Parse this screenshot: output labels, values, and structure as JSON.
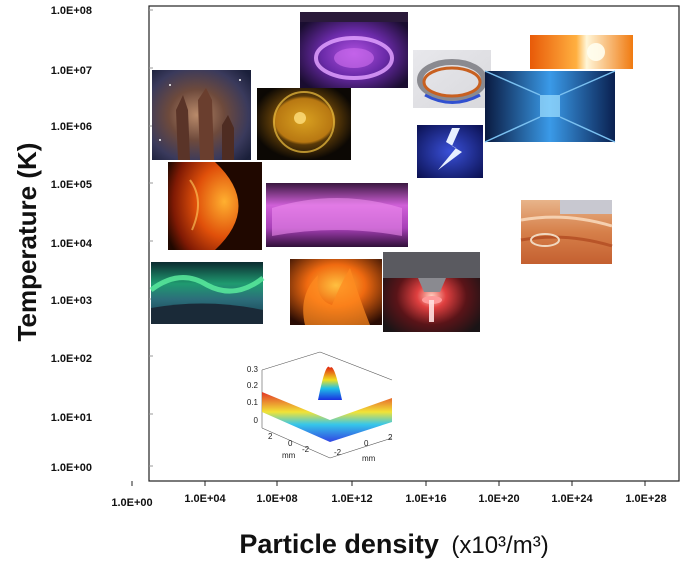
{
  "chart_data": {
    "type": "scatter",
    "title": "",
    "xlabel": "Particle density",
    "xlabel_unit": "(x10³/m³)",
    "ylabel": "Temperature (K)",
    "x_scale": "log",
    "y_scale": "log",
    "x_ticks": [
      "1.0E+00",
      "1.0E+04",
      "1.0E+08",
      "1.0E+12",
      "1.0E+16",
      "1.0E+20",
      "1.0E+24",
      "1.0E+28"
    ],
    "y_ticks": [
      "1.0E+08",
      "1.0E+07",
      "1.0E+06",
      "1.0E+05",
      "1.0E+04",
      "1.0E+03",
      "1.0E+02",
      "1.0E+01",
      "1.0E+00"
    ],
    "xlim": [
      "1.0E+00",
      "1.0E+28"
    ],
    "ylim": [
      "1.0E+00",
      "1.0E+08"
    ],
    "grid": false,
    "points": [
      {
        "image": "pillars-nebula",
        "x": "1.0E+02",
        "y": "1.0E+06"
      },
      {
        "image": "solar-corona",
        "x": "1.0E+09",
        "y": "1.0E+06"
      },
      {
        "image": "tokamak-plasma",
        "x": "1.0E+12",
        "y": "1.0E+07"
      },
      {
        "image": "sun-surface",
        "x": "1.0E+02",
        "y": "5.0E+04"
      },
      {
        "image": "pink-plasma-chamber",
        "x": "1.0E+11",
        "y": "5.0E+04"
      },
      {
        "image": "aurora",
        "x": "1.0E+01",
        "y": "1.0E+03"
      },
      {
        "image": "flames",
        "x": "1.0E+11",
        "y": "1.0E+03"
      },
      {
        "image": "plasma-torch",
        "x": "1.0E+15",
        "y": "1.0E+03"
      },
      {
        "image": "stellarator-coils",
        "x": "1.0E+17",
        "y": "1.0E+07"
      },
      {
        "image": "lightning",
        "x": "1.0E+17",
        "y": "1.0E+05"
      },
      {
        "image": "laser-facility",
        "x": "1.0E+22",
        "y": "1.0E+06"
      },
      {
        "image": "stellar-core",
        "x": "1.0E+24",
        "y": "1.0E+07"
      },
      {
        "image": "earth-interior",
        "x": "1.0E+24",
        "y": "5.0E+04"
      },
      {
        "image": "ultracold-gas-3d-plot",
        "x": "1.0E+10",
        "y": "1.0E+01"
      }
    ],
    "inset_plot": {
      "z_ticks": [
        "0.3",
        "0.2",
        "0.1",
        "0"
      ],
      "x_ticks": [
        "2",
        "0",
        "-2"
      ],
      "y_ticks": [
        "-2",
        "0",
        "2"
      ],
      "x_unit": "mm",
      "y_unit": "mm"
    }
  }
}
